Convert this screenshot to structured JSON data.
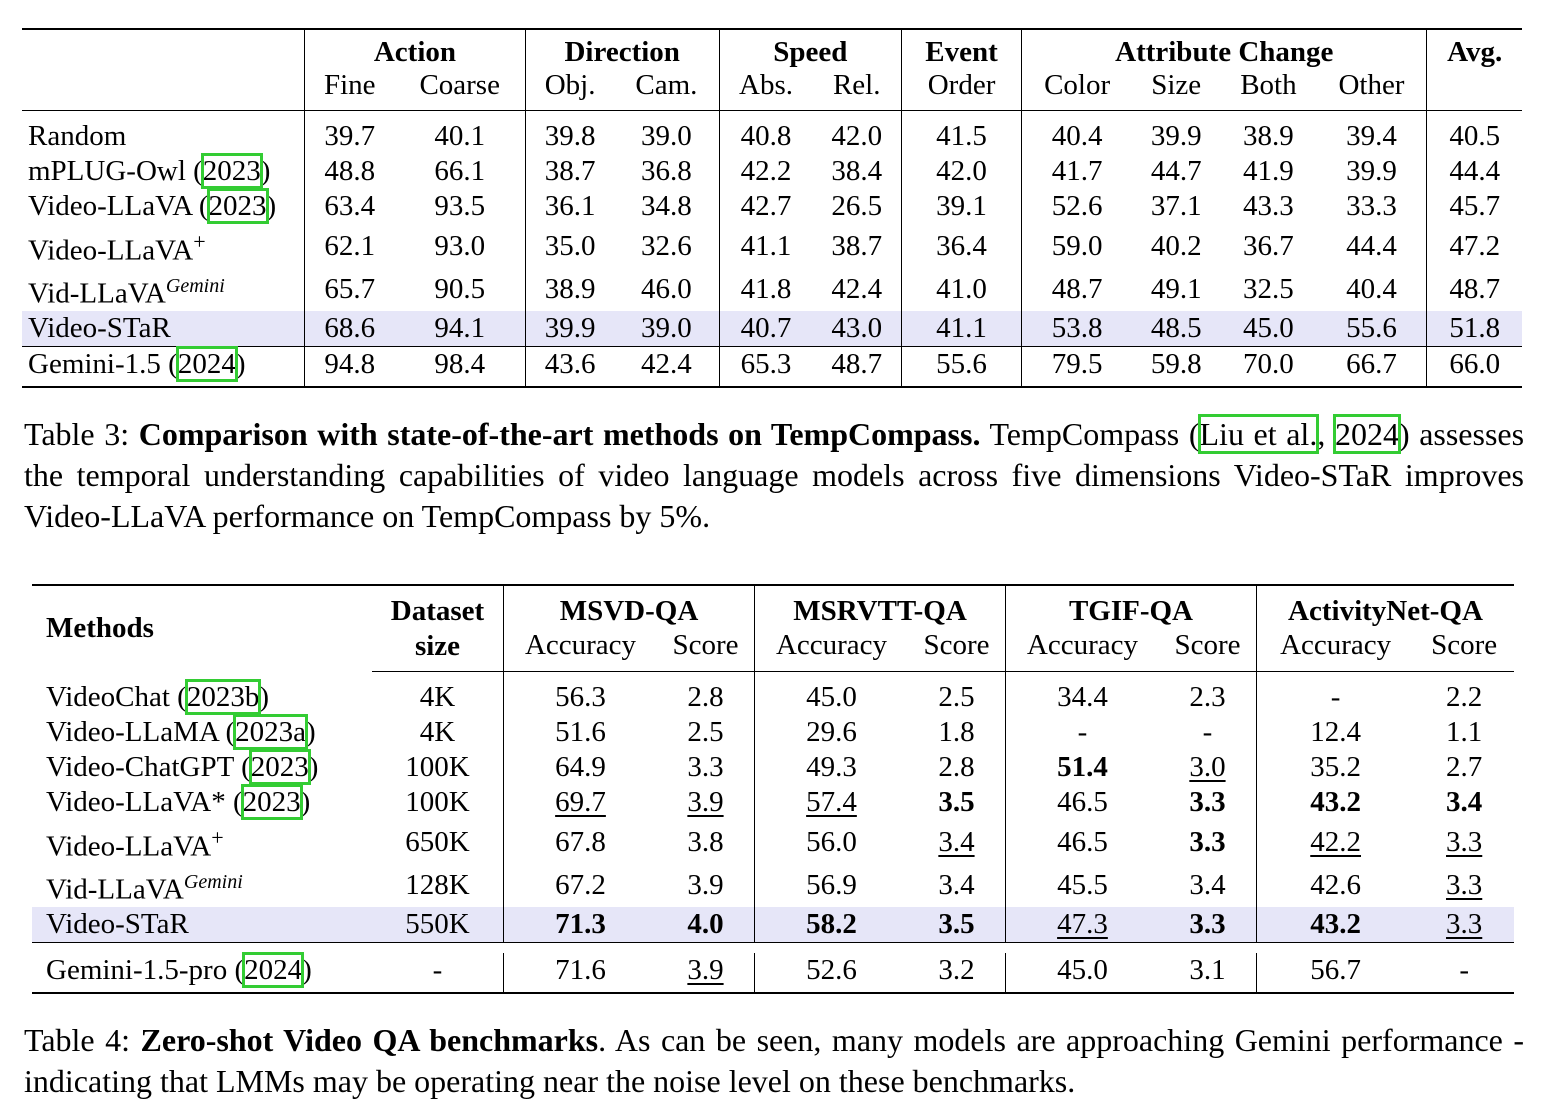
{
  "table3": {
    "groups": [
      "Action",
      "Direction",
      "Speed",
      "Event",
      "Attribute Change",
      "Avg."
    ],
    "subheaders": [
      "Fine",
      "Coarse",
      "Obj.",
      "Cam.",
      "Abs.",
      "Rel.",
      "Order",
      "Color",
      "Size",
      "Both",
      "Other"
    ],
    "rows": [
      {
        "name": "Random",
        "cite": "",
        "sup": "",
        "values": [
          "39.7",
          "40.1",
          "39.8",
          "39.0",
          "40.8",
          "42.0",
          "41.5",
          "40.4",
          "39.9",
          "38.9",
          "39.4",
          "40.5"
        ]
      },
      {
        "name": "mPLUG-Owl (",
        "cite": "2023",
        "close": ")",
        "sup": "",
        "values": [
          "48.8",
          "66.1",
          "38.7",
          "36.8",
          "42.2",
          "38.4",
          "42.0",
          "41.7",
          "44.7",
          "41.9",
          "39.9",
          "44.4"
        ]
      },
      {
        "name": "Video-LLaVA (",
        "cite": "2023",
        "close": ")",
        "sup": "",
        "values": [
          "63.4",
          "93.5",
          "36.1",
          "34.8",
          "42.7",
          "26.5",
          "39.1",
          "52.6",
          "37.1",
          "43.3",
          "33.3",
          "45.7"
        ]
      },
      {
        "name": "Video-LLaVA",
        "cite": "",
        "sup": "+",
        "values": [
          "62.1",
          "93.0",
          "35.0",
          "32.6",
          "41.1",
          "38.7",
          "36.4",
          "59.0",
          "40.2",
          "36.7",
          "44.4",
          "47.2"
        ]
      },
      {
        "name": "Vid-LLaVA",
        "cite": "",
        "sup": "Gemini",
        "values": [
          "65.7",
          "90.5",
          "38.9",
          "46.0",
          "41.8",
          "42.4",
          "41.0",
          "48.7",
          "49.1",
          "32.5",
          "40.4",
          "48.7"
        ]
      },
      {
        "name": "Video-STaR",
        "cite": "",
        "sup": "",
        "values": [
          "68.6",
          "94.1",
          "39.9",
          "39.0",
          "40.7",
          "43.0",
          "41.1",
          "53.8",
          "48.5",
          "45.0",
          "55.6",
          "51.8"
        ]
      },
      {
        "name": "Gemini-1.5 (",
        "cite": "2024",
        "close": ")",
        "sup": "",
        "values": [
          "94.8",
          "98.4",
          "43.6",
          "42.4",
          "65.3",
          "48.7",
          "55.6",
          "79.5",
          "59.8",
          "70.0",
          "66.7",
          "66.0"
        ]
      }
    ],
    "caption": {
      "label": "Table 3: ",
      "bold": "Comparison with state-of-the-art methods on TempCompass.",
      "text1": " TempCompass (",
      "cite1": "Liu et al.",
      "text2": ", ",
      "cite2": "2024",
      "text3": ") assesses the temporal understanding capabilities of video language models across five dimensions Video-STaR improves Video-LLaVA performance on TempCompass by 5%."
    }
  },
  "table4": {
    "header": {
      "methods": "Methods",
      "dataset_line1": "Dataset",
      "dataset_line2": "size",
      "groups": [
        "MSVD-QA",
        "MSRVTT-QA",
        "TGIF-QA",
        "ActivityNet-QA"
      ],
      "acc": "Accuracy",
      "score": "Score"
    },
    "rows": [
      {
        "name": "VideoChat (",
        "cite": "2023b",
        "close": ")",
        "sup": "",
        "size": "4K",
        "values": [
          "56.3",
          "2.8",
          "45.0",
          "2.5",
          "34.4",
          "2.3",
          "-",
          "2.2"
        ]
      },
      {
        "name": "Video-LLaMA (",
        "cite": "2023a",
        "close": ")",
        "sup": "",
        "size": "4K",
        "values": [
          "51.6",
          "2.5",
          "29.6",
          "1.8",
          "-",
          "-",
          "12.4",
          "1.1"
        ]
      },
      {
        "name": "Video-ChatGPT (",
        "cite": "2023",
        "close": ")",
        "sup": "",
        "size": "100K",
        "values": [
          "64.9",
          "3.3",
          "49.3",
          "2.8",
          "51.4",
          "3.0",
          "35.2",
          "2.7"
        ]
      },
      {
        "name": "Video-LLaVA* (",
        "cite": "2023",
        "close": ")",
        "sup": "",
        "size": "100K",
        "values": [
          "69.7",
          "3.9",
          "57.4",
          "3.5",
          "46.5",
          "3.3",
          "43.2",
          "3.4"
        ]
      },
      {
        "name": "Video-LLaVA",
        "cite": "",
        "sup": "+",
        "size": "650K",
        "values": [
          "67.8",
          "3.8",
          "56.0",
          "3.4",
          "46.5",
          "3.3",
          "42.2",
          "3.3"
        ]
      },
      {
        "name": "Vid-LLaVA",
        "cite": "",
        "sup": "Gemini",
        "size": "128K",
        "values": [
          "67.2",
          "3.9",
          "56.9",
          "3.4",
          "45.5",
          "3.4",
          "42.6",
          "3.3"
        ]
      },
      {
        "name": "Video-STaR",
        "cite": "",
        "sup": "",
        "size": "550K",
        "values": [
          "71.3",
          "4.0",
          "58.2",
          "3.5",
          "47.3",
          "3.3",
          "43.2",
          "3.3"
        ]
      },
      {
        "name": "Gemini-1.5-pro (",
        "cite": "2024",
        "close": ")",
        "sup": "",
        "size": "-",
        "values": [
          "71.6",
          "3.9",
          "52.6",
          "3.2",
          "45.0",
          "3.1",
          "56.7",
          "-"
        ]
      }
    ],
    "caption": {
      "label": "Table 4: ",
      "bold": "Zero-shot Video QA benchmarks",
      "text": ". As can be seen, many models are approaching Gemini performance - indicating that LMMs may be operating near the noise level on these benchmarks."
    }
  },
  "colors": {
    "highlight_row": "#e6e6f8",
    "citation_box": "#33cc33"
  }
}
